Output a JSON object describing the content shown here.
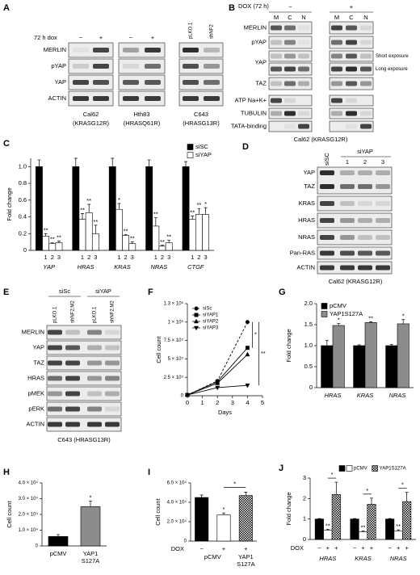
{
  "blots": [
    {
      "panel": "A",
      "header": "72 h dox",
      "rows": [
        "MERLIN",
        "pYAP",
        "YAP",
        "ACTIN"
      ],
      "lanes": [
        {
          "cols": [
            "−",
            "+"
          ],
          "caption": [
            "Cal62",
            "(KRASG12R)"
          ]
        },
        {
          "cols": [
            "−",
            "+"
          ],
          "caption": [
            "Hth83",
            "(HRASQ61R)"
          ]
        },
        {
          "cols": [
            "pLKO.1",
            "shNF2"
          ],
          "caption": [
            "C643",
            "(HRASG13R)"
          ]
        }
      ]
    },
    {
      "panel": "B",
      "header": "DOX (72 h)",
      "groups": [
        "−",
        "+"
      ],
      "cols": [
        "M",
        "C",
        "N"
      ],
      "rows": [
        "MERLIN",
        "pYAP",
        "YAP",
        "TAZ",
        "ATP Na+K+",
        "TUBULIN",
        "TATA-binding"
      ],
      "notes": [
        "Short exposure",
        "Long exposure"
      ],
      "caption": "Cal62 (KRASG12R)"
    },
    {
      "panel": "D",
      "cols": [
        "siSC"
      ],
      "group": "siYAP",
      "subcols": [
        "1",
        "2",
        "3"
      ],
      "rows": [
        "YAP",
        "TAZ",
        "KRAS",
        "HRAS",
        "NRAS",
        "Pan-RAS",
        "ACTIN"
      ],
      "caption": "Cal62 (KRASG12R)"
    },
    {
      "panel": "E",
      "groups": [
        "siSc",
        "siYAP"
      ],
      "cols": [
        "pLKO.1",
        "shNF2.M2",
        "pLKO.1",
        "shNF2.M2"
      ],
      "rows": [
        "MERLIN",
        "YAP",
        "TAZ",
        "HRAS",
        "pMEK",
        "pERK",
        "ACTIN"
      ],
      "caption": "C643 (HRASG13R)"
    }
  ],
  "chart_data": [
    {
      "type": "grouped_bar",
      "panel": "C",
      "ylabel": "Fold change",
      "categories": [
        "YAP",
        "HRAS",
        "KRAS",
        "NRAS",
        "CTGF"
      ],
      "ylim": [
        0,
        1.1
      ],
      "yticks": [
        0,
        0.2,
        0.4,
        0.6,
        0.8,
        {
          "value": 1,
          "label": "1.0"
        }
      ],
      "legend": "upper right",
      "series": [
        {
          "name": "siSC",
          "color": "#000000",
          "values": [
            1,
            1,
            1,
            1,
            1
          ],
          "errors": [
            0.08,
            0.1,
            0.1,
            0.08,
            0.06
          ]
        },
        {
          "name": "siYAP",
          "label": "1",
          "color": "#ffffff",
          "values": [
            0.17,
            0.37,
            0.49,
            0.29,
            0.37
          ],
          "errors": [
            0.03,
            0.07,
            0.07,
            0.1,
            0.04
          ],
          "stars": [
            "**",
            "**",
            "*",
            "**",
            "**"
          ]
        },
        {
          "label": "2",
          "color": "#ffffff",
          "values": [
            0.08,
            0.45,
            0.18,
            0.05,
            0.43
          ],
          "errors": [
            0.01,
            0.1,
            0.01,
            0.01,
            0.07
          ],
          "stars": [
            "**",
            "**",
            "**",
            "**",
            "**"
          ]
        },
        {
          "label": "3",
          "color": "#ffffff",
          "values": [
            0.09,
            0.2,
            0.08,
            0.09,
            0.43
          ],
          "errors": [
            0.02,
            0.1,
            0.02,
            0.03,
            0.08
          ],
          "stars": [
            "**",
            "**",
            "**",
            "**",
            "*"
          ]
        }
      ]
    },
    {
      "type": "line",
      "panel": "F",
      "ylabel": "Cell count",
      "xlabel": "Days",
      "x": [
        0,
        2,
        4
      ],
      "xlim": [
        0,
        5
      ],
      "xticks": [
        0,
        1,
        2,
        3,
        4,
        5
      ],
      "ylim": [
        0,
        1250000
      ],
      "yticks": [
        0,
        {
          "value": 250000,
          "label": "2.5 × 10⁵"
        },
        {
          "value": 500000,
          "label": "5 × 10⁵"
        },
        {
          "value": 750000,
          "label": "7.5 × 10⁵"
        },
        {
          "value": 1000000,
          "label": "1 × 10⁶"
        },
        {
          "value": 1250000,
          "label": "1.3 × 10⁶"
        }
      ],
      "legend": "upper left",
      "brackets": [
        "*",
        "**"
      ],
      "series": [
        {
          "name": "siSc",
          "color": "#000000",
          "marker": "circle",
          "dashed": true,
          "values": [
            10000,
            200000,
            1000000
          ]
        },
        {
          "name": "siYAP1",
          "color": "#000000",
          "marker": "square",
          "values": [
            10000,
            190000,
            650000
          ]
        },
        {
          "name": "siYAP2",
          "color": "#000000",
          "marker": "triangle",
          "values": [
            10000,
            170000,
            560000
          ]
        },
        {
          "name": "siYAP3",
          "color": "#000000",
          "marker": "triangle-down",
          "values": [
            10000,
            110000,
            140000
          ]
        }
      ]
    },
    {
      "type": "grouped_bar",
      "panel": "G",
      "ylabel": "Fold change",
      "categories": [
        "HRAS",
        "KRAS",
        "NRAS"
      ],
      "ylim": [
        0,
        2
      ],
      "yticks": [
        0,
        0.5,
        {
          "value": 1,
          "label": "1.0"
        },
        1.5,
        {
          "value": 2,
          "label": "2.0"
        }
      ],
      "legend": "upper left",
      "series": [
        {
          "name": "pCMV",
          "color": "#000000",
          "values": [
            1,
            1,
            1
          ],
          "errors": [
            0.12,
            0.02,
            0.03
          ]
        },
        {
          "name": "YAP1S127A",
          "color": "#8c8c8c",
          "values": [
            1.48,
            1.55,
            1.52
          ],
          "errors": [
            0.05,
            0.02,
            0.1
          ],
          "stars": [
            "*",
            "**",
            "*"
          ]
        }
      ]
    },
    {
      "type": "bar",
      "panel": "H",
      "ylabel": "Cell count",
      "categories": [
        [
          "pCMV"
        ],
        [
          "YAP1",
          "S127A"
        ]
      ],
      "values": [
        6000,
        25000
      ],
      "errors": [
        1200,
        3500
      ],
      "colors": [
        "#000000",
        "#8c8c8c"
      ],
      "stars": [
        null,
        "*"
      ],
      "ylim": [
        0,
        40000
      ],
      "yticks": [
        0,
        {
          "value": 10000,
          "label": "1.0 × 10⁴"
        },
        {
          "value": 20000,
          "label": "2.0 × 10⁴"
        },
        {
          "value": 30000,
          "label": "3.0 × 10⁴"
        },
        {
          "value": 40000,
          "label": "4.0 × 10⁴"
        }
      ]
    },
    {
      "type": "bar",
      "panel": "I",
      "ylabel": "Cell count",
      "categories": [
        [
          "pCMV"
        ],
        null,
        [
          "YAP1",
          "S127A"
        ]
      ],
      "values": [
        45000,
        27000,
        47000
      ],
      "errors": [
        2500,
        2000,
        3500
      ],
      "colors": [
        "#000000",
        "#ffffff",
        "checker"
      ],
      "stars": [
        null,
        "*",
        null
      ],
      "dox_label": "DOX",
      "dox": [
        "−",
        "+",
        "+"
      ],
      "brackets": [
        "*"
      ],
      "ylim": [
        0,
        60000
      ],
      "yticks": [
        0,
        {
          "value": 20000,
          "label": "2.0 × 10⁴"
        },
        {
          "value": 40000,
          "label": "4.0 × 10⁴"
        },
        {
          "value": 60000,
          "label": "6.0 × 10⁴"
        }
      ]
    },
    {
      "type": "grouped_bar",
      "panel": "J",
      "ylabel": "Fold change",
      "categories": [
        "HRAS",
        "KRAS",
        "NRAS"
      ],
      "ylim": [
        0,
        3
      ],
      "yticks": [
        0,
        1,
        2,
        3
      ],
      "legend": "top",
      "dox_label": "DOX",
      "dox": [
        "−",
        "+",
        "+"
      ],
      "brackets": [
        "*",
        "*",
        "*"
      ],
      "series": [
        {
          "color": "#000000",
          "values": [
            1,
            1,
            1
          ],
          "errors": [
            0.02,
            0.02,
            0.02
          ]
        },
        {
          "name": "pCMV",
          "color": "#ffffff",
          "values": [
            0.45,
            0.38,
            0.42
          ],
          "errors": [
            0.05,
            0.04,
            0.05
          ],
          "stars": [
            "**",
            "**",
            "**"
          ]
        },
        {
          "name": "YAP1S127A",
          "color": "checker",
          "values": [
            2.2,
            1.72,
            1.85
          ],
          "errors": [
            0.6,
            0.3,
            0.45
          ]
        }
      ]
    }
  ]
}
